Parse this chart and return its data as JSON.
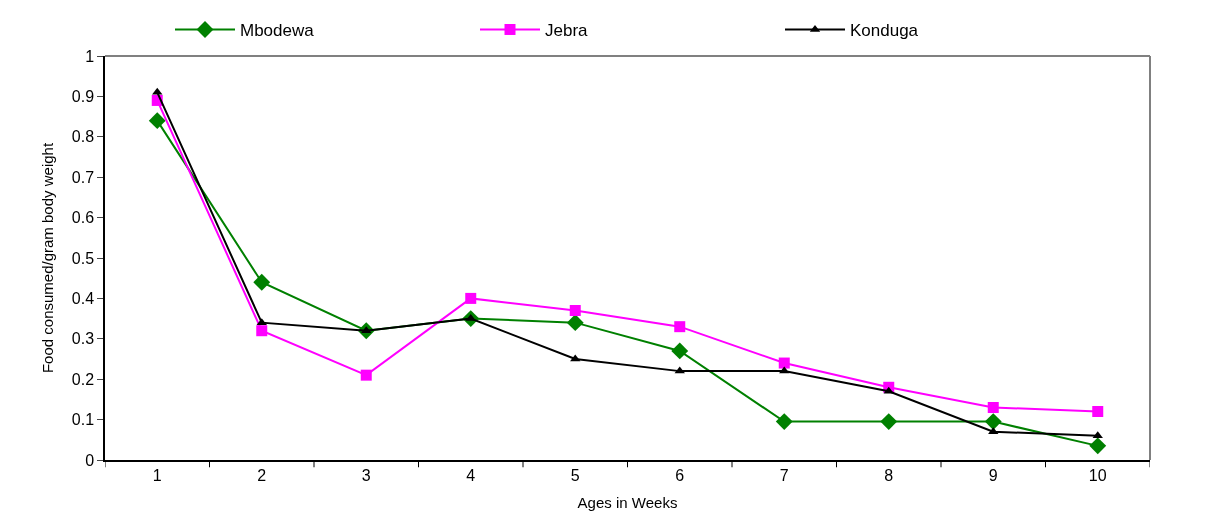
{
  "chart_data": {
    "type": "line",
    "xlabel": "Ages in Weeks",
    "ylabel": "Food consumed/gram body weight",
    "categories": [
      "1",
      "2",
      "3",
      "4",
      "5",
      "6",
      "7",
      "8",
      "9",
      "10"
    ],
    "series": [
      {
        "name": "Mbodewa",
        "color": "#008000",
        "marker": "diamond",
        "values": [
          0.84,
          0.44,
          0.32,
          0.35,
          0.34,
          0.27,
          0.095,
          0.095,
          0.095,
          0.035
        ]
      },
      {
        "name": "Jebra",
        "color": "#ff00ff",
        "marker": "square",
        "values": [
          0.89,
          0.32,
          0.21,
          0.4,
          0.37,
          0.33,
          0.24,
          0.18,
          0.13,
          0.12
        ]
      },
      {
        "name": "Konduga",
        "color": "#000000",
        "marker": "triangle",
        "values": [
          0.91,
          0.34,
          0.32,
          0.35,
          0.25,
          0.22,
          0.22,
          0.17,
          0.07,
          0.06
        ]
      }
    ],
    "ylim": [
      0,
      1
    ],
    "yticks": [
      0,
      0.1,
      0.2,
      0.3,
      0.4,
      0.5,
      0.6,
      0.7,
      0.8,
      0.9,
      1
    ],
    "grid": false,
    "legend": "top",
    "line_style": "solid"
  }
}
